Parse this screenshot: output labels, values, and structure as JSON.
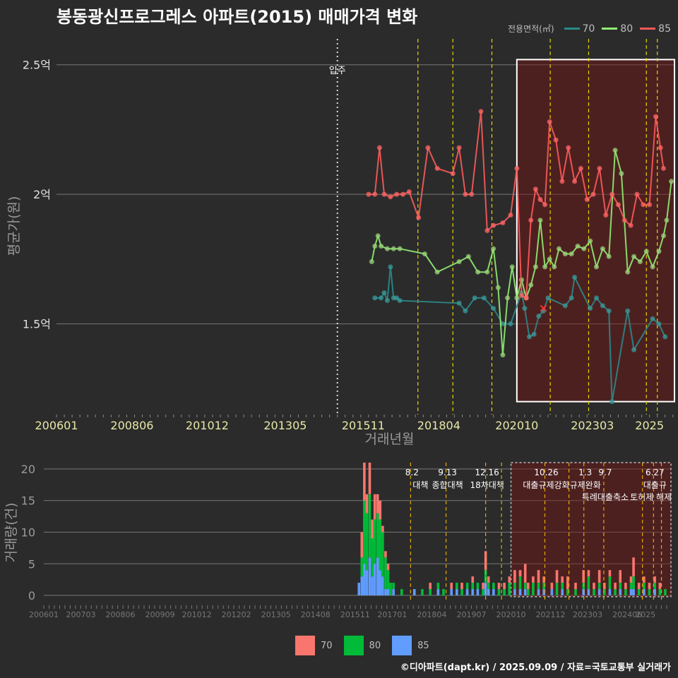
{
  "title": "봉동광신프로그레스 아파트(2015) 매매가격 변화",
  "footer": "©디아파트(dapt.kr) / 2025.09.09 / 자료=국토교통부 실거래가",
  "legend_title": "전용면적(㎡)",
  "colors": {
    "s70_line": "#2a8a8a",
    "s80_line": "#90ee73",
    "s85_line": "#ff5a5a",
    "b70": "#f8766d",
    "b80": "#00ba38",
    "b85": "#619cff"
  },
  "chart_data": [
    {
      "type": "line",
      "xlabel": "거래년월",
      "ylabel": "평균가(원)",
      "xlim": [
        2006.0,
        2025.8
      ],
      "ylim": [
        1.15,
        2.6
      ],
      "ytick_values": [
        1.5,
        2.0,
        2.5
      ],
      "ytick_labels": [
        "1.5억",
        "2억",
        "2.5억"
      ],
      "xtick_values": [
        2006.0,
        2008.42,
        2010.83,
        2013.33,
        2015.83,
        2018.25,
        2020.75,
        2023.17,
        2025.0
      ],
      "xtick_labels": [
        "200601",
        "200806",
        "201012",
        "201305",
        "201511",
        "201804",
        "202010",
        "202303",
        "2025"
      ],
      "annotations": [
        {
          "x": 2015.0,
          "label": "입주"
        }
      ],
      "policy_lines": [
        2017.58,
        2018.7,
        2019.95,
        2021.82,
        2023.05,
        2024.9,
        2025.25
      ],
      "highlight": {
        "x0": 2020.75,
        "x1": 2025.8,
        "y0": 1.2,
        "y1": 2.52
      },
      "marker_x": {
        "x": 2021.6,
        "y": 1.56
      },
      "series": [
        {
          "name": "70",
          "points": [
            [
              2016.2,
              1.6
            ],
            [
              2016.4,
              1.6
            ],
            [
              2016.5,
              1.62
            ],
            [
              2016.6,
              1.59
            ],
            [
              2016.7,
              1.72
            ],
            [
              2016.8,
              1.6
            ],
            [
              2016.9,
              1.6
            ],
            [
              2017.0,
              1.59
            ],
            [
              2018.9,
              1.58
            ],
            [
              2019.1,
              1.55
            ],
            [
              2019.4,
              1.6
            ],
            [
              2019.7,
              1.6
            ],
            [
              2020.0,
              1.56
            ],
            [
              2020.3,
              1.5
            ],
            [
              2020.55,
              1.5
            ],
            [
              2020.9,
              1.62
            ],
            [
              2021.0,
              1.56
            ],
            [
              2021.15,
              1.45
            ],
            [
              2021.3,
              1.46
            ],
            [
              2021.45,
              1.53
            ],
            [
              2021.6,
              1.55
            ],
            [
              2021.75,
              1.6
            ],
            [
              2022.3,
              1.57
            ],
            [
              2022.5,
              1.6
            ],
            [
              2022.6,
              1.68
            ],
            [
              2023.1,
              1.56
            ],
            [
              2023.3,
              1.6
            ],
            [
              2023.5,
              1.57
            ],
            [
              2023.7,
              1.55
            ],
            [
              2023.8,
              1.2
            ],
            [
              2024.3,
              1.55
            ],
            [
              2024.5,
              1.4
            ],
            [
              2025.1,
              1.52
            ],
            [
              2025.3,
              1.5
            ],
            [
              2025.5,
              1.45
            ]
          ]
        },
        {
          "name": "80",
          "points": [
            [
              2016.1,
              1.74
            ],
            [
              2016.2,
              1.8
            ],
            [
              2016.3,
              1.84
            ],
            [
              2016.4,
              1.8
            ],
            [
              2016.6,
              1.79
            ],
            [
              2016.8,
              1.79
            ],
            [
              2017.0,
              1.79
            ],
            [
              2017.8,
              1.77
            ],
            [
              2018.2,
              1.7
            ],
            [
              2018.9,
              1.74
            ],
            [
              2019.2,
              1.76
            ],
            [
              2019.5,
              1.7
            ],
            [
              2019.8,
              1.7
            ],
            [
              2020.0,
              1.79
            ],
            [
              2020.15,
              1.64
            ],
            [
              2020.3,
              1.38
            ],
            [
              2020.45,
              1.6
            ],
            [
              2020.6,
              1.72
            ],
            [
              2020.75,
              1.6
            ],
            [
              2020.9,
              1.67
            ],
            [
              2021.05,
              1.6
            ],
            [
              2021.2,
              1.65
            ],
            [
              2021.35,
              1.72
            ],
            [
              2021.5,
              1.9
            ],
            [
              2021.65,
              1.72
            ],
            [
              2021.8,
              1.75
            ],
            [
              2021.95,
              1.72
            ],
            [
              2022.1,
              1.79
            ],
            [
              2022.3,
              1.77
            ],
            [
              2022.5,
              1.77
            ],
            [
              2022.7,
              1.8
            ],
            [
              2022.9,
              1.79
            ],
            [
              2023.1,
              1.82
            ],
            [
              2023.3,
              1.72
            ],
            [
              2023.5,
              1.79
            ],
            [
              2023.7,
              1.76
            ],
            [
              2023.9,
              2.17
            ],
            [
              2024.1,
              2.08
            ],
            [
              2024.3,
              1.7
            ],
            [
              2024.5,
              1.76
            ],
            [
              2024.7,
              1.74
            ],
            [
              2024.9,
              1.78
            ],
            [
              2025.1,
              1.72
            ],
            [
              2025.3,
              1.78
            ],
            [
              2025.45,
              1.84
            ],
            [
              2025.55,
              1.9
            ],
            [
              2025.7,
              2.05
            ]
          ]
        },
        {
          "name": "85",
          "points": [
            [
              2016.0,
              2.0
            ],
            [
              2016.2,
              2.0
            ],
            [
              2016.35,
              2.18
            ],
            [
              2016.5,
              2.0
            ],
            [
              2016.7,
              1.99
            ],
            [
              2016.9,
              2.0
            ],
            [
              2017.1,
              2.0
            ],
            [
              2017.3,
              2.01
            ],
            [
              2017.6,
              1.91
            ],
            [
              2017.9,
              2.18
            ],
            [
              2018.2,
              2.1
            ],
            [
              2018.7,
              2.08
            ],
            [
              2018.9,
              2.18
            ],
            [
              2019.1,
              2.0
            ],
            [
              2019.3,
              2.0
            ],
            [
              2019.6,
              2.32
            ],
            [
              2019.8,
              1.86
            ],
            [
              2020.0,
              1.88
            ],
            [
              2020.3,
              1.89
            ],
            [
              2020.55,
              1.92
            ],
            [
              2020.75,
              2.1
            ],
            [
              2020.9,
              1.61
            ],
            [
              2021.05,
              1.6
            ],
            [
              2021.2,
              1.9
            ],
            [
              2021.35,
              2.02
            ],
            [
              2021.5,
              1.98
            ],
            [
              2021.65,
              1.96
            ],
            [
              2021.8,
              2.28
            ],
            [
              2022.0,
              2.21
            ],
            [
              2022.2,
              2.05
            ],
            [
              2022.4,
              2.18
            ],
            [
              2022.6,
              2.05
            ],
            [
              2022.8,
              2.1
            ],
            [
              2023.0,
              1.98
            ],
            [
              2023.2,
              2.0
            ],
            [
              2023.4,
              2.1
            ],
            [
              2023.6,
              1.92
            ],
            [
              2023.8,
              2.0
            ],
            [
              2024.0,
              1.96
            ],
            [
              2024.2,
              1.9
            ],
            [
              2024.4,
              1.88
            ],
            [
              2024.6,
              2.0
            ],
            [
              2024.8,
              1.96
            ],
            [
              2025.0,
              1.96
            ],
            [
              2025.2,
              2.3
            ],
            [
              2025.35,
              2.18
            ],
            [
              2025.45,
              2.1
            ]
          ]
        }
      ]
    },
    {
      "type": "bar",
      "xlabel": "",
      "ylabel": "거래량(건)",
      "xlim": [
        2006.0,
        2025.8
      ],
      "ylim": [
        -1,
        21
      ],
      "ytick_values": [
        0,
        5,
        10,
        15,
        20
      ],
      "ytick_labels": [
        "0",
        "5",
        "10",
        "15",
        "20"
      ],
      "xtick_values": [
        2006.0,
        2007.17,
        2008.42,
        2009.67,
        2010.83,
        2012.08,
        2013.33,
        2014.58,
        2015.83,
        2017.0,
        2018.25,
        2019.5,
        2020.75,
        2022.0,
        2023.17,
        2024.42,
        2025.0
      ],
      "xtick_labels": [
        "200601",
        "200703",
        "200806",
        "200909",
        "201012",
        "201202",
        "201305",
        "201408",
        "201511",
        "201701",
        "201804",
        "201907",
        "202010",
        "202112",
        "202303",
        "202406",
        "2025"
      ],
      "policies": [
        {
          "x": 2017.58,
          "date": "8.2",
          "label": "대책"
        },
        {
          "x": 2018.7,
          "date": "9.13",
          "label": "종합대책"
        },
        {
          "x": 2019.95,
          "date": "12.16",
          "label": "18차대책"
        },
        {
          "x": 2020.45,
          "date": "",
          "label": ""
        },
        {
          "x": 2021.82,
          "date": "10.26",
          "label": "대출규제강화"
        },
        {
          "x": 2022.58,
          "date": "",
          "label": ""
        },
        {
          "x": 2023.05,
          "date": "1.3",
          "label": "규제완화"
        },
        {
          "x": 2023.68,
          "date": "9.7",
          "label": "특례대출축소"
        },
        {
          "x": 2024.9,
          "date": "",
          "label": "토허제 해제"
        },
        {
          "x": 2025.25,
          "date": "6.27",
          "label": "대출규"
        },
        {
          "x": 2025.5,
          "date": "",
          "label": ""
        }
      ],
      "highlight": {
        "x0": 2020.75,
        "x1": 2025.8,
        "y0": -0.2,
        "y1": 21
      },
      "bars": [
        {
          "x": 2015.95,
          "s70": 0,
          "s80": 0,
          "s85": 2
        },
        {
          "x": 2016.04,
          "s70": 4,
          "s80": 3,
          "s85": 3
        },
        {
          "x": 2016.12,
          "s70": 6,
          "s80": 10,
          "s85": 5
        },
        {
          "x": 2016.2,
          "s70": 3,
          "s80": 9,
          "s85": 4
        },
        {
          "x": 2016.29,
          "s70": 5,
          "s80": 10,
          "s85": 6
        },
        {
          "x": 2016.37,
          "s70": 3,
          "s80": 6,
          "s85": 3
        },
        {
          "x": 2016.45,
          "s70": 4,
          "s80": 7,
          "s85": 5
        },
        {
          "x": 2016.54,
          "s70": 3,
          "s80": 7,
          "s85": 6
        },
        {
          "x": 2016.62,
          "s70": 3,
          "s80": 8,
          "s85": 4
        },
        {
          "x": 2016.7,
          "s70": 1,
          "s80": 7,
          "s85": 3
        },
        {
          "x": 2016.79,
          "s70": 1,
          "s80": 5,
          "s85": 1
        },
        {
          "x": 2016.87,
          "s70": 1,
          "s80": 3,
          "s85": 1
        },
        {
          "x": 2016.95,
          "s70": 0,
          "s80": 2,
          "s85": 0
        },
        {
          "x": 2017.04,
          "s70": 0,
          "s80": 1,
          "s85": 1
        },
        {
          "x": 2017.3,
          "s70": 0,
          "s80": 1,
          "s85": 0
        },
        {
          "x": 2017.7,
          "s70": 0,
          "s80": 0,
          "s85": 1
        },
        {
          "x": 2017.95,
          "s70": 0,
          "s80": 1,
          "s85": 0
        },
        {
          "x": 2018.2,
          "s70": 1,
          "s80": 1,
          "s85": 0
        },
        {
          "x": 2018.45,
          "s70": 0,
          "s80": 1,
          "s85": 1
        },
        {
          "x": 2018.62,
          "s70": 0,
          "s80": 1,
          "s85": 0
        },
        {
          "x": 2018.87,
          "s70": 1,
          "s80": 0,
          "s85": 1
        },
        {
          "x": 2019.04,
          "s70": 0,
          "s80": 1,
          "s85": 1
        },
        {
          "x": 2019.2,
          "s70": 1,
          "s80": 1,
          "s85": 0
        },
        {
          "x": 2019.37,
          "s70": 0,
          "s80": 1,
          "s85": 1
        },
        {
          "x": 2019.54,
          "s70": 1,
          "s80": 1,
          "s85": 1
        },
        {
          "x": 2019.7,
          "s70": 0,
          "s80": 1,
          "s85": 1
        },
        {
          "x": 2019.87,
          "s70": 1,
          "s80": 1,
          "s85": 0
        },
        {
          "x": 2019.95,
          "s70": 3,
          "s80": 2,
          "s85": 2
        },
        {
          "x": 2020.04,
          "s70": 1,
          "s80": 1,
          "s85": 1
        },
        {
          "x": 2020.2,
          "s70": 0,
          "s80": 1,
          "s85": 1
        },
        {
          "x": 2020.37,
          "s70": 1,
          "s80": 1,
          "s85": 0
        },
        {
          "x": 2020.54,
          "s70": 1,
          "s80": 1,
          "s85": 0
        },
        {
          "x": 2020.7,
          "s70": 1,
          "s80": 2,
          "s85": 0
        },
        {
          "x": 2020.87,
          "s70": 2,
          "s80": 1,
          "s85": 1
        },
        {
          "x": 2021.04,
          "s70": 1,
          "s80": 2,
          "s85": 1
        },
        {
          "x": 2021.2,
          "s70": 3,
          "s80": 1,
          "s85": 1
        },
        {
          "x": 2021.29,
          "s70": 1,
          "s80": 1,
          "s85": 0
        },
        {
          "x": 2021.45,
          "s70": 1,
          "s80": 2,
          "s85": 0
        },
        {
          "x": 2021.62,
          "s70": 2,
          "s80": 1,
          "s85": 1
        },
        {
          "x": 2021.79,
          "s70": 1,
          "s80": 1,
          "s85": 1
        },
        {
          "x": 2022.04,
          "s70": 1,
          "s80": 0,
          "s85": 1
        },
        {
          "x": 2022.2,
          "s70": 2,
          "s80": 2,
          "s85": 0
        },
        {
          "x": 2022.37,
          "s70": 1,
          "s80": 1,
          "s85": 1
        },
        {
          "x": 2022.54,
          "s70": 2,
          "s80": 1,
          "s85": 0
        },
        {
          "x": 2022.79,
          "s70": 1,
          "s80": 1,
          "s85": 0
        },
        {
          "x": 2023.04,
          "s70": 2,
          "s80": 1,
          "s85": 1
        },
        {
          "x": 2023.2,
          "s70": 1,
          "s80": 2,
          "s85": 1
        },
        {
          "x": 2023.37,
          "s70": 1,
          "s80": 1,
          "s85": 0
        },
        {
          "x": 2023.54,
          "s70": 2,
          "s80": 1,
          "s85": 1
        },
        {
          "x": 2023.7,
          "s70": 1,
          "s80": 1,
          "s85": 0
        },
        {
          "x": 2023.87,
          "s70": 1,
          "s80": 2,
          "s85": 1
        },
        {
          "x": 2024.04,
          "s70": 1,
          "s80": 1,
          "s85": 0
        },
        {
          "x": 2024.2,
          "s70": 2,
          "s80": 1,
          "s85": 1
        },
        {
          "x": 2024.37,
          "s70": 1,
          "s80": 1,
          "s85": 0
        },
        {
          "x": 2024.54,
          "s70": 1,
          "s80": 1,
          "s85": 1
        },
        {
          "x": 2024.62,
          "s70": 3,
          "s80": 2,
          "s85": 1
        },
        {
          "x": 2024.79,
          "s70": 1,
          "s80": 1,
          "s85": 0
        },
        {
          "x": 2024.95,
          "s70": 1,
          "s80": 1,
          "s85": 1
        },
        {
          "x": 2025.12,
          "s70": 1,
          "s80": 1,
          "s85": 0
        },
        {
          "x": 2025.29,
          "s70": 1,
          "s80": 1,
          "s85": 1
        },
        {
          "x": 2025.45,
          "s70": 1,
          "s80": 1,
          "s85": 0
        },
        {
          "x": 2025.62,
          "s70": 0,
          "s80": 1,
          "s85": 0
        }
      ]
    }
  ],
  "legend_bottom": [
    {
      "key": "b70",
      "label": "70"
    },
    {
      "key": "b80",
      "label": "80"
    },
    {
      "key": "b85",
      "label": "85"
    }
  ],
  "legend_top": [
    {
      "key": "s70_line",
      "label": "70"
    },
    {
      "key": "s80_line",
      "label": "80"
    },
    {
      "key": "s85_line",
      "label": "85"
    }
  ]
}
